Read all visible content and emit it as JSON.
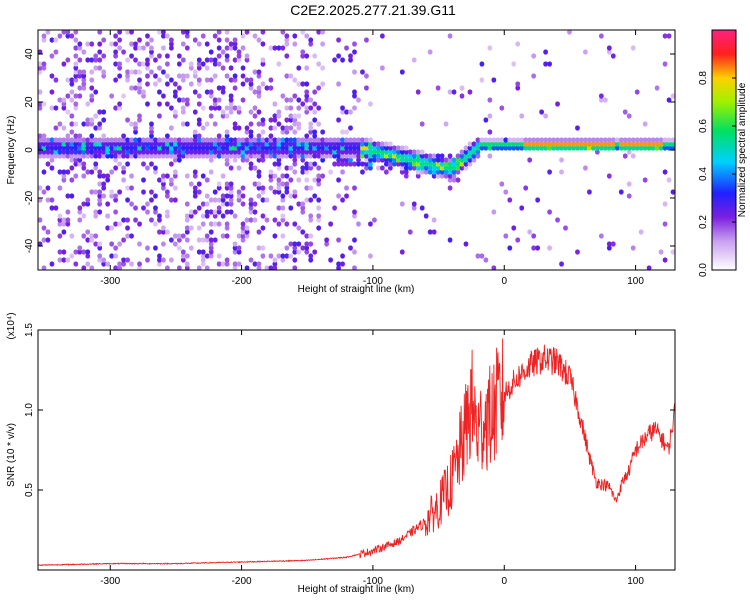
{
  "title": "C2E2.2025.277.21.39.G11",
  "colors": {
    "snr_line": "#ee2222",
    "spectrogram_bg": "#ffffff",
    "axis": "#000000"
  },
  "chart_data": [
    {
      "type": "heatmap",
      "name": "spectrogram",
      "title": "C2E2.2025.277.21.39.G11",
      "xlabel": "Height of straight line (km)",
      "ylabel": "Frequency (Hz)",
      "xlim": [
        -355,
        130
      ],
      "ylim": [
        -50,
        50
      ],
      "xticks": [
        -300,
        -200,
        -100,
        0,
        100
      ],
      "xtick_labels": [
        "-300",
        "-200",
        "-100",
        "0",
        "100"
      ],
      "yticks": [
        -40,
        -20,
        0,
        20,
        40
      ],
      "ytick_labels": [
        "-40",
        "-20",
        "0",
        "20",
        "40"
      ],
      "colorbar": {
        "label": "Normalized spectral amplitude",
        "range": [
          0,
          1
        ],
        "ticks": [
          0.0,
          0.2,
          0.4,
          0.6,
          0.8
        ],
        "tick_labels": [
          "0.0",
          "0.2",
          "0.4",
          "0.6",
          "0.8"
        ],
        "colormap": "rainbow (white-violet-blue-cyan-green-yellow-red-magenta)"
      },
      "description_of_signal": "Broadband noise below about -140 km; dominant signal near 0 Hz descending from ~0 to -10 Hz between -110 and -40 km, then a narrow strong line near +2 Hz for heights above -30 km, peaking (red) near 20-80 km and 90-120 km."
    },
    {
      "type": "line",
      "name": "snr",
      "title": "",
      "xlabel": "Height of straight line (km)",
      "ylabel": "SNR (10 * v/v)",
      "y_multiplier": "(x10⁴)",
      "xlim": [
        -355,
        130
      ],
      "ylim": [
        0,
        1.5
      ],
      "xticks": [
        -300,
        -200,
        -100,
        0,
        100
      ],
      "xtick_labels": [
        "-300",
        "-200",
        "-100",
        "0",
        "100"
      ],
      "yticks": [
        0.5,
        1.0,
        1.5
      ],
      "ytick_labels": [
        "0.5",
        "1.0",
        "1.5"
      ],
      "series": [
        {
          "name": "SNR",
          "color": "#ee2222",
          "x": [
            -355,
            -300,
            -250,
            -200,
            -150,
            -120,
            -100,
            -80,
            -60,
            -50,
            -40,
            -35,
            -30,
            -25,
            -20,
            -15,
            -10,
            -5,
            0,
            10,
            20,
            30,
            40,
            45,
            50,
            55,
            60,
            65,
            70,
            80,
            85,
            90,
            95,
            100,
            105,
            110,
            115,
            120,
            125,
            130
          ],
          "y": [
            0.03,
            0.04,
            0.04,
            0.05,
            0.06,
            0.08,
            0.12,
            0.18,
            0.3,
            0.4,
            0.55,
            0.7,
            0.85,
            1.05,
            0.85,
            0.95,
            0.95,
            1.05,
            1.1,
            1.2,
            1.28,
            1.32,
            1.3,
            1.25,
            1.2,
            1.05,
            0.88,
            0.7,
            0.55,
            0.52,
            0.43,
            0.55,
            0.62,
            0.75,
            0.8,
            0.85,
            0.88,
            0.82,
            0.75,
            1.0
          ]
        }
      ]
    }
  ]
}
